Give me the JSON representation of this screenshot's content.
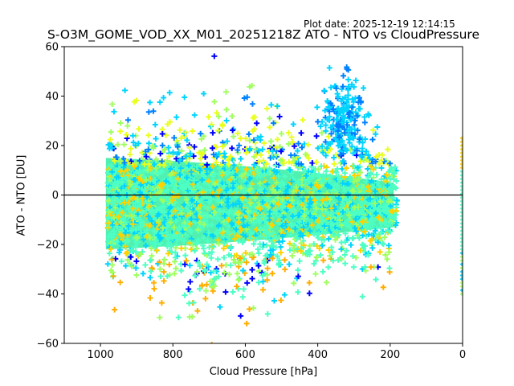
{
  "plot_date": "Plot date: 2025-12-19 12:14:15",
  "chart_data": {
    "type": "scatter",
    "title": "S-O3M_GOME_VOD_XX_M01_20251218Z ATO - NTO vs CloudPressure",
    "xlabel": "Cloud Pressure [hPa]",
    "ylabel": "ATO - NTO [DU]",
    "xlim": [
      1100,
      0
    ],
    "ylim": [
      -60,
      60
    ],
    "x_ticks": [
      1000,
      800,
      600,
      400,
      200,
      0
    ],
    "y_ticks": [
      60,
      40,
      20,
      0,
      -20,
      -40,
      -60
    ],
    "x_tick_labels": [
      "1000",
      "800",
      "600",
      "400",
      "200",
      "0"
    ],
    "y_tick_labels": [
      "60",
      "40",
      "20",
      "0",
      "−20",
      "−40",
      "−60"
    ],
    "marker": "+",
    "reference_line_y": 0,
    "reference_line_color": "#000000",
    "colormap": [
      "#0000ff",
      "#0080ff",
      "#00d4ff",
      "#4dffc4",
      "#a0ff60",
      "#e8ff20",
      "#ffd200",
      "#ffae00"
    ],
    "dense_color": "#50f0b0",
    "grid": false,
    "legend": "none"
  }
}
